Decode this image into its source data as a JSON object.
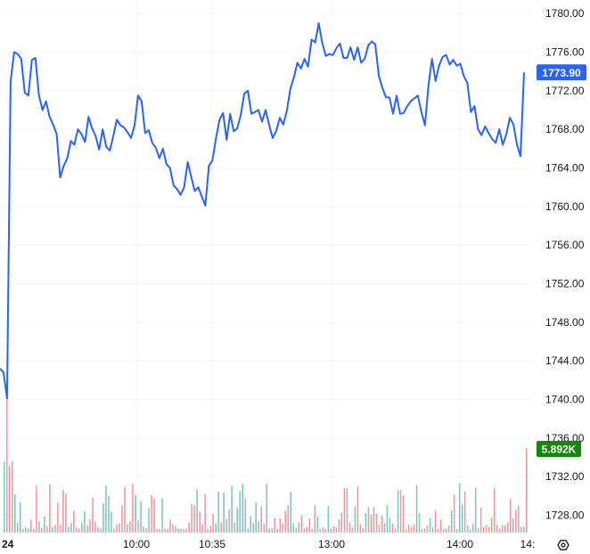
{
  "chart_data": {
    "type": "line",
    "price_series": {
      "color": "#2962ff",
      "x": [
        0,
        1,
        2,
        3,
        4,
        5,
        6,
        7,
        8,
        9,
        10,
        11,
        12,
        13,
        14,
        15,
        16,
        17,
        18,
        19,
        20,
        21,
        22,
        23,
        24,
        25,
        26,
        27,
        28,
        29,
        30,
        31,
        32,
        33,
        34,
        35,
        36,
        37,
        38,
        39,
        40,
        41,
        42,
        43,
        44,
        45,
        46,
        47,
        48,
        49,
        50,
        51,
        52,
        53,
        54,
        55,
        56,
        57,
        58,
        59,
        60,
        61,
        62,
        63,
        64,
        65,
        66,
        67,
        68,
        69,
        70,
        71,
        72,
        73,
        74,
        75,
        76,
        77,
        78,
        79,
        80,
        81,
        82,
        83,
        84,
        85,
        86,
        87,
        88,
        89,
        90,
        91,
        92,
        93,
        94,
        95,
        96,
        97,
        98,
        99,
        100,
        101,
        102,
        103,
        104,
        105,
        106,
        107,
        108,
        109,
        110,
        111,
        112,
        113,
        114,
        115,
        116,
        117,
        118,
        119,
        120,
        121,
        122,
        123,
        124,
        125,
        126,
        127,
        128,
        129,
        130,
        131,
        132,
        133,
        134,
        135,
        136,
        137,
        138,
        139,
        140,
        141,
        142,
        143,
        144,
        145,
        146,
        147,
        148
      ],
      "values": [
        1743.2,
        1742.8,
        1740.1,
        1773.0,
        1776.0,
        1775.8,
        1775.3,
        1771.8,
        1771.5,
        1775.2,
        1775.4,
        1771.5,
        1770.0,
        1770.9,
        1769.3,
        1768.5,
        1767.5,
        1763.0,
        1764.2,
        1765.0,
        1766.8,
        1766.4,
        1768.0,
        1767.5,
        1766.7,
        1769.3,
        1768.1,
        1767.3,
        1765.9,
        1768.0,
        1766.2,
        1765.8,
        1767.3,
        1769.0,
        1768.4,
        1768.2,
        1767.7,
        1767.1,
        1768.4,
        1771.5,
        1770.9,
        1767.6,
        1767.9,
        1766.6,
        1766.1,
        1765.0,
        1766.0,
        1764.4,
        1764.0,
        1762.2,
        1761.8,
        1761.2,
        1762.0,
        1764.6,
        1763.1,
        1761.6,
        1762.0,
        1761.0,
        1760.1,
        1764.2,
        1764.8,
        1767.1,
        1769.0,
        1769.7,
        1766.9,
        1769.6,
        1767.8,
        1768.1,
        1769.5,
        1771.7,
        1772.0,
        1769.6,
        1769.8,
        1770.0,
        1768.8,
        1770.0,
        1768.5,
        1767.1,
        1767.8,
        1769.2,
        1768.5,
        1769.9,
        1772.2,
        1773.4,
        1774.9,
        1774.3,
        1775.3,
        1774.5,
        1777.3,
        1777.0,
        1779.0,
        1777.0,
        1775.6,
        1775.8,
        1775.7,
        1776.4,
        1776.9,
        1775.4,
        1775.4,
        1776.5,
        1775.2,
        1776.5,
        1774.9,
        1775.3,
        1776.7,
        1777.1,
        1776.8,
        1773.5,
        1772.3,
        1771.3,
        1771.3,
        1769.6,
        1771.5,
        1769.6,
        1769.7,
        1770.4,
        1770.9,
        1771.2,
        1771.5,
        1769.8,
        1768.4,
        1772.5,
        1775.3,
        1773.0,
        1774.6,
        1775.5,
        1775.7,
        1774.7,
        1775.2,
        1774.6,
        1774.8,
        1773.5,
        1772.8,
        1769.8,
        1770.4,
        1768.0,
        1767.4,
        1768.3,
        1767.6,
        1767.0,
        1766.6,
        1768.0,
        1766.4,
        1767.5,
        1769.2,
        1768.5,
        1766.4,
        1765.2,
        1773.9
      ]
    },
    "last_price_label": "1773.90",
    "last_volume_label": "5.892K",
    "y_axis_ticks": [
      "1780.00",
      "1776.00",
      "1772.00",
      "1768.00",
      "1764.00",
      "1760.00",
      "1756.00",
      "1752.00",
      "1748.00",
      "1744.00",
      "1740.00",
      "1736.00",
      "1732.00",
      "1728.00"
    ],
    "y_tick_values": [
      1780,
      1776,
      1772,
      1768,
      1764,
      1760,
      1756,
      1752,
      1748,
      1744,
      1740,
      1736,
      1732,
      1728
    ],
    "x_axis_ticks": [
      "24",
      "10:00",
      "10:35",
      "13:00",
      "14:00",
      "14:"
    ],
    "ylim": [
      1726.2,
      1781.4
    ],
    "grid": true,
    "up_color": "#089981",
    "down_color": "#f23645"
  }
}
